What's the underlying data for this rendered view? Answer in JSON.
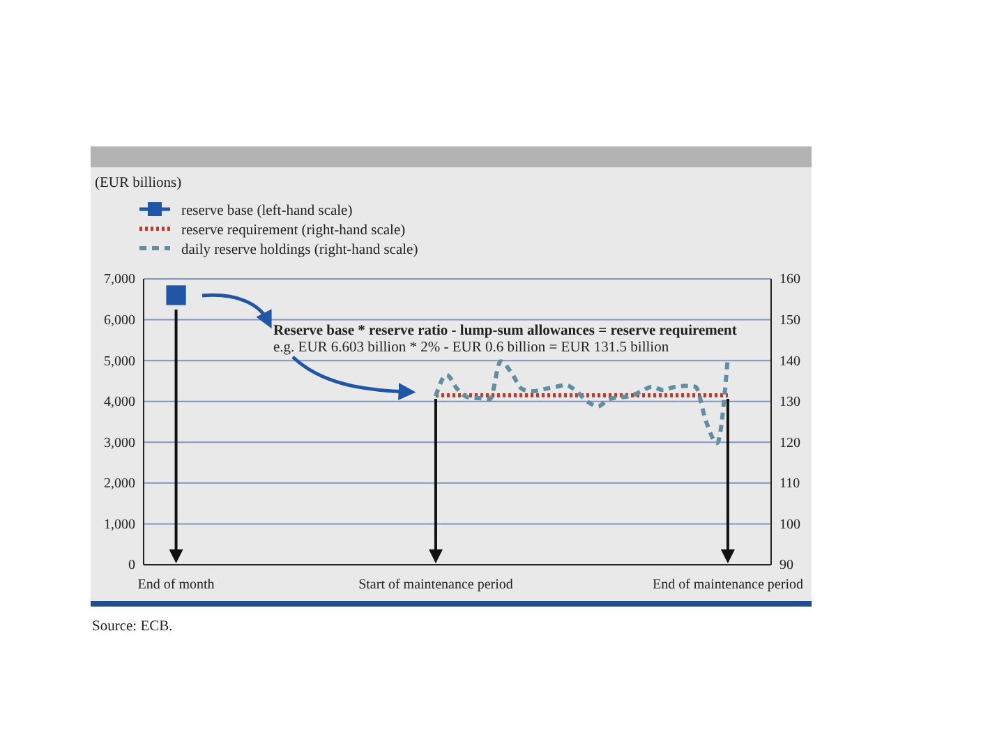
{
  "chart_data": {
    "type": "line",
    "annotations": [
      "(EUR billions)",
      "Reserve base * reserve ratio - lump-sum allowances = reserve requirement",
      "e.g. EUR 6.603 billion * 2% - EUR 0.6 billion = EUR 131.5 billion",
      "Source: ECB."
    ],
    "categories": [
      "End of month",
      null,
      null,
      null,
      null,
      null,
      null,
      null,
      null,
      null,
      null,
      null,
      null,
      null,
      null,
      null,
      null,
      null,
      null,
      null,
      null,
      null,
      null,
      null,
      "Start of maintenance period",
      null,
      null,
      null,
      null,
      null,
      null,
      null,
      null,
      null,
      null,
      null,
      null,
      null,
      null,
      null,
      null,
      null,
      null,
      null,
      null,
      null,
      null,
      null,
      null,
      null,
      null,
      "End of maintenance period",
      null
    ],
    "ylim": [
      0,
      7000
    ],
    "yticks": [
      0,
      {
        "value": 1000,
        "label": "1,000"
      },
      {
        "value": 2000,
        "label": "2,000"
      },
      {
        "value": 3000,
        "label": "3,000"
      },
      {
        "value": 4000,
        "label": "4,000"
      },
      {
        "value": 5000,
        "label": "5,000"
      },
      {
        "value": 6000,
        "label": "6,000"
      },
      {
        "value": 7000,
        "label": "7,000"
      }
    ],
    "y2lim": [
      90,
      160
    ],
    "y2ticks": [
      90,
      100,
      110,
      120,
      130,
      140,
      150,
      160
    ],
    "grid": "y",
    "legend": "top left",
    "series": [
      {
        "name": "reserve base (left-hand scale)",
        "type": "scatter",
        "marker": "square",
        "color": "#1f57a6",
        "values": [
          6600,
          null,
          null,
          null,
          null,
          null,
          null,
          null,
          null,
          null,
          null,
          null,
          null,
          null,
          null,
          null,
          null,
          null,
          null,
          null,
          null,
          null,
          null,
          null,
          null,
          null,
          null,
          null,
          null,
          null,
          null,
          null,
          null,
          null,
          null,
          null,
          null,
          null,
          null,
          null,
          null,
          null,
          null,
          null,
          null,
          null,
          null,
          null,
          null,
          null,
          null,
          null,
          null
        ]
      },
      {
        "name": "reserve requirement (right-hand scale)",
        "line_style": "dotted",
        "axis": "y2",
        "color": "#c0392b",
        "values": [
          null,
          null,
          null,
          null,
          null,
          null,
          null,
          null,
          null,
          null,
          null,
          null,
          null,
          null,
          null,
          null,
          null,
          null,
          null,
          null,
          null,
          null,
          null,
          null,
          131.5,
          131.5,
          131.5,
          131.5,
          131.5,
          131.5,
          131.5,
          131.5,
          131.5,
          131.5,
          131.5,
          131.5,
          131.5,
          131.5,
          131.5,
          131.5,
          131.5,
          131.5,
          131.5,
          131.5,
          131.5,
          131.5,
          131.5,
          131.5,
          131.5,
          131.5,
          131.5,
          131.5,
          null
        ]
      },
      {
        "name": "daily reserve holdings (right-hand scale)",
        "line_style": "dashed",
        "axis": "y2",
        "color": "#5f8fa0",
        "values": [
          null,
          null,
          null,
          null,
          null,
          null,
          null,
          null,
          null,
          null,
          null,
          null,
          null,
          null,
          null,
          null,
          null,
          null,
          null,
          null,
          null,
          null,
          null,
          null,
          131.3,
          136.5,
          133,
          131,
          130.8,
          130.5,
          139.8,
          137,
          133,
          132.5,
          133,
          133.5,
          134,
          132.5,
          130,
          128.8,
          130.5,
          131,
          131.3,
          132.5,
          133.6,
          132.8,
          133.5,
          133.8,
          133.6,
          125,
          119.8,
          140.9,
          null
        ]
      }
    ]
  }
}
